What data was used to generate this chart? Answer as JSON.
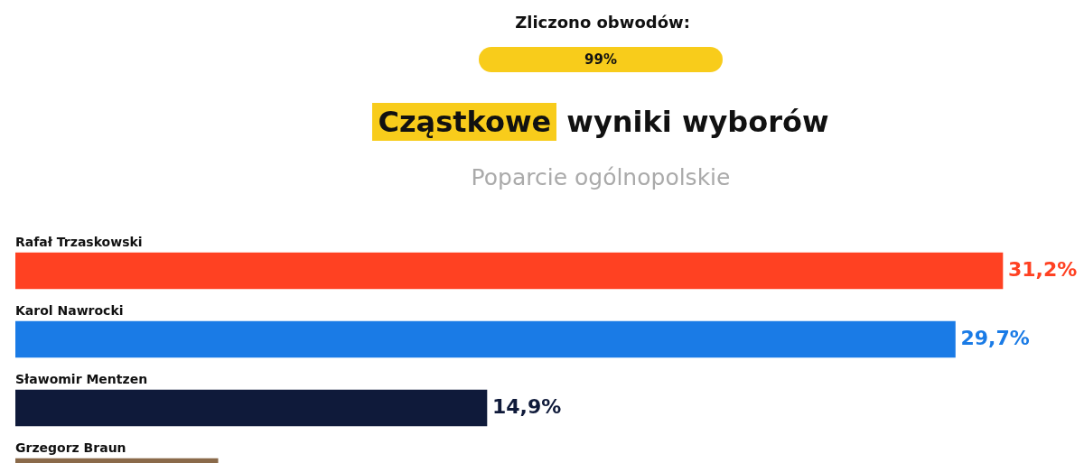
{
  "chart_data": {
    "type": "bar",
    "orientation": "horizontal",
    "title": "Cząstkowe wyniki wyborów",
    "subtitle": "Poparcie ogólnopolskie",
    "annotations": [
      "Zliczono obwodów:",
      "99%"
    ],
    "categories": [
      "Rafał Trzaskowski",
      "Karol Nawrocki",
      "Sławomir Mentzen",
      "Grzegorz Braun"
    ],
    "values": [
      31.2,
      29.7,
      14.9,
      6.4
    ],
    "colors": [
      "#ff4122",
      "#1a7be6",
      "#0f1a3a",
      "#8a6a4a"
    ],
    "value_labels": [
      "31,2%",
      "29,7%",
      "14,9%",
      null
    ]
  }
}
